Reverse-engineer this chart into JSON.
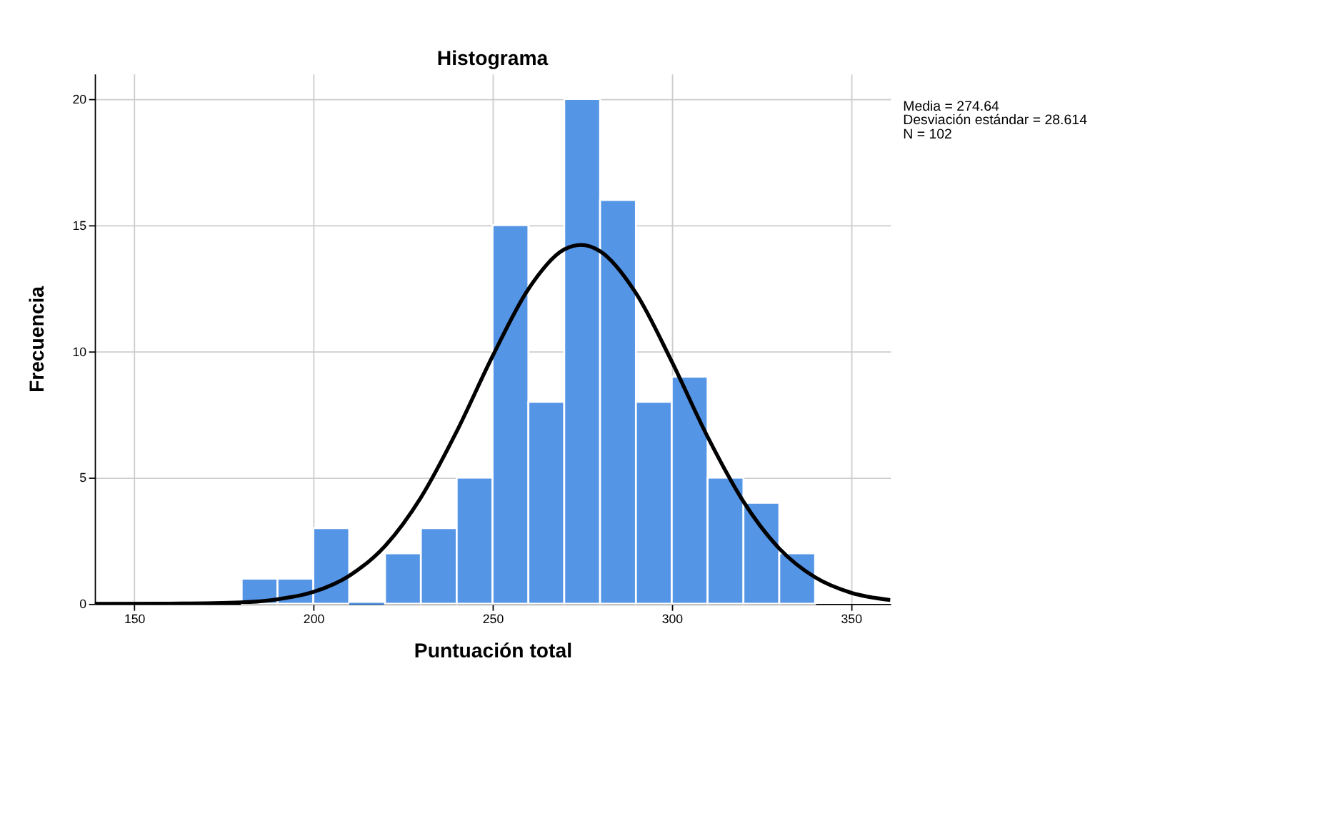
{
  "chart_data": {
    "type": "histogram",
    "title": "Histograma",
    "xlabel": "Puntuación total",
    "ylabel": "Frecuencia",
    "bins": [
      180,
      190,
      200,
      210,
      220,
      230,
      240,
      250,
      260,
      270,
      280,
      290,
      300,
      310,
      320,
      330,
      340
    ],
    "values": [
      1,
      1,
      3,
      0,
      2,
      3,
      5,
      15,
      8,
      20,
      16,
      8,
      9,
      5,
      4,
      2
    ],
    "color": "#5595e6",
    "series": [
      {
        "type": "line",
        "color": "#000000",
        "x": [
          139,
          160,
          180,
          190,
          200,
          210,
          220,
          230,
          240,
          250,
          260,
          270,
          274.64,
          280,
          290,
          300,
          310,
          320,
          330,
          340,
          350,
          361
        ],
        "values": [
          0,
          0.01,
          0.06,
          0.18,
          0.47,
          1.11,
          2.29,
          4.21,
          6.83,
          9.81,
          12.47,
          14.04,
          14.22,
          13.97,
          12.31,
          9.6,
          6.62,
          4.05,
          2.19,
          1.05,
          0.44,
          0.15
        ]
      }
    ],
    "xlim": [
      139,
      361
    ],
    "ylim": [
      0,
      21
    ],
    "xticks": [
      150,
      200,
      250,
      300,
      350
    ],
    "yticks": [
      0,
      5,
      10,
      15,
      20
    ],
    "grid": true,
    "annotations": [
      "Media = 274.64",
      "Desviación estándar = 28.614",
      "N = 102"
    ]
  }
}
